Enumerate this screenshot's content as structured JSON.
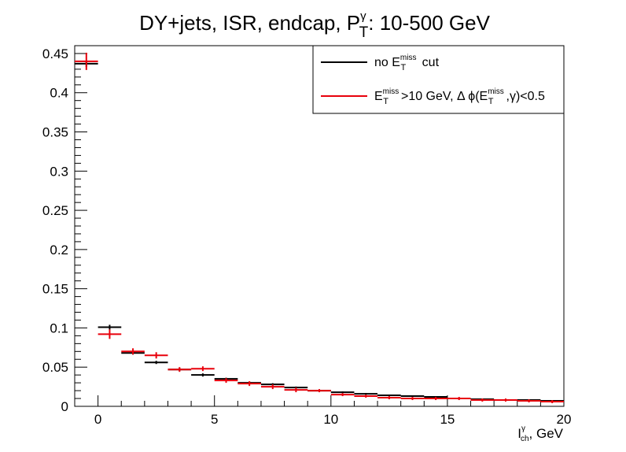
{
  "chart_data": {
    "type": "scatter",
    "title": {
      "main": "DY+jets, ISR,  endcap,  P",
      "sup": "γ",
      "sub": "T",
      "tail": ": 10-500 GeV"
    },
    "xlabel": {
      "main": "I",
      "sup": "γ",
      "sub": "ch",
      "tail": ", GeV"
    },
    "ylabel": "",
    "xlim": [
      -1,
      20
    ],
    "ylim": [
      0,
      0.46
    ],
    "x_ticks": [
      0,
      5,
      10,
      15,
      20
    ],
    "y_ticks": [
      0,
      0.05,
      0.1,
      0.15,
      0.2,
      0.25,
      0.3,
      0.35,
      0.4,
      0.45
    ],
    "x_tick_labels": [
      "0",
      "5",
      "10",
      "15",
      "20"
    ],
    "y_tick_labels": [
      "0",
      "0.05",
      "0.1",
      "0.15",
      "0.2",
      "0.25",
      "0.3",
      "0.35",
      "0.4",
      "0.45"
    ],
    "bin_width": 1,
    "series": [
      {
        "name": {
          "pre": "no E",
          "sup": "miss",
          "sub": "T",
          "tail": " cut"
        },
        "color": "#000000",
        "x": [
          -0.5,
          0.5,
          1.5,
          2.5,
          3.5,
          4.5,
          5.5,
          6.5,
          7.5,
          8.5,
          9.5,
          10.5,
          11.5,
          12.5,
          13.5,
          14.5,
          15.5,
          16.5,
          17.5,
          18.5,
          19.5
        ],
        "y": [
          0.437,
          0.101,
          0.068,
          0.056,
          0.047,
          0.04,
          0.035,
          0.03,
          0.028,
          0.024,
          0.02,
          0.018,
          0.016,
          0.014,
          0.013,
          0.012,
          0.01,
          0.009,
          0.008,
          0.008,
          0.007
        ],
        "yerr": [
          0.004,
          0.003,
          0.002,
          0.002,
          0.002,
          0.002,
          0.0015,
          0.0015,
          0.0015,
          0.0012,
          0.0012,
          0.001,
          0.001,
          0.001,
          0.001,
          0.001,
          0.001,
          0.001,
          0.001,
          0.001,
          0.001
        ]
      },
      {
        "name": {
          "pre": "E",
          "sup1": "miss",
          "sub1": "T",
          "mid": ">10 GeV, Δ ϕ(E",
          "sup2": "miss",
          "sub2": "T",
          "tail": ",γ)<0.5"
        },
        "color": "#e8000b",
        "x": [
          -0.5,
          0.5,
          1.5,
          2.5,
          3.5,
          4.5,
          5.5,
          6.5,
          7.5,
          8.5,
          9.5,
          10.5,
          11.5,
          12.5,
          13.5,
          14.5,
          15.5,
          16.5,
          17.5,
          18.5,
          19.5
        ],
        "y": [
          0.44,
          0.092,
          0.07,
          0.065,
          0.047,
          0.048,
          0.033,
          0.029,
          0.025,
          0.021,
          0.02,
          0.015,
          0.013,
          0.011,
          0.01,
          0.01,
          0.01,
          0.008,
          0.008,
          0.007,
          0.006
        ],
        "yerr": [
          0.011,
          0.006,
          0.004,
          0.004,
          0.003,
          0.003,
          0.003,
          0.003,
          0.003,
          0.003,
          0.002,
          0.002,
          0.002,
          0.002,
          0.002,
          0.002,
          0.002,
          0.002,
          0.002,
          0.002,
          0.002
        ]
      }
    ],
    "legend_position": "top-right",
    "grid": false
  }
}
